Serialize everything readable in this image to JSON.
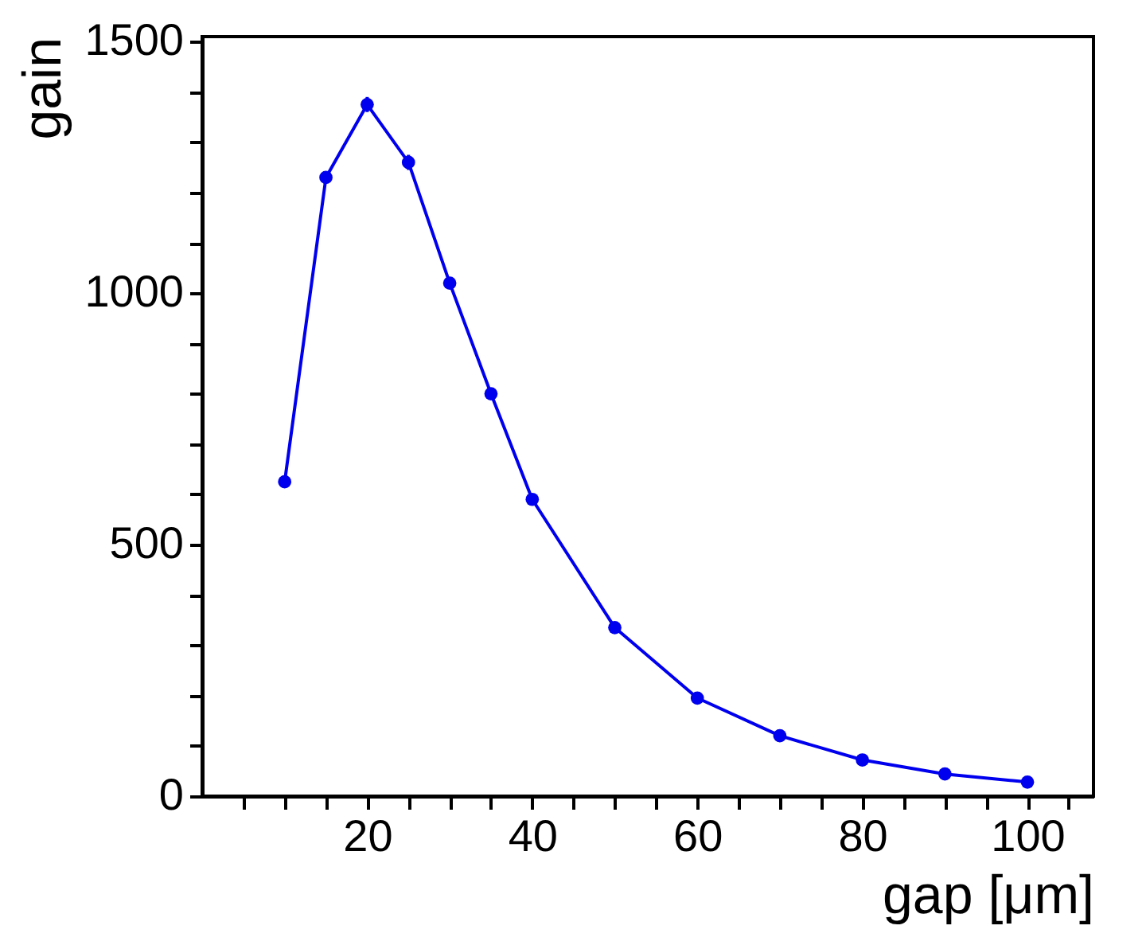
{
  "chart_data": {
    "type": "line",
    "xlabel": "gap [μm]",
    "ylabel": "gain",
    "x": [
      10,
      15,
      20,
      25,
      30,
      35,
      40,
      50,
      60,
      70,
      80,
      90,
      100
    ],
    "series": [
      {
        "color": "#0000ee",
        "values": [
          625,
          1230,
          1375,
          1260,
          1020,
          800,
          590,
          335,
          195,
          120,
          72,
          44,
          28
        ],
        "errors": [
          null,
          null,
          15,
          15,
          null,
          null,
          null,
          null,
          null,
          null,
          null,
          null,
          null
        ]
      }
    ],
    "xlim": [
      0,
      108
    ],
    "ylim": [
      0,
      1510
    ],
    "xticks": [
      {
        "value": 5,
        "label": null
      },
      {
        "value": 10,
        "label": null
      },
      {
        "value": 15,
        "label": null
      },
      20,
      {
        "value": 25,
        "label": null
      },
      {
        "value": 30,
        "label": null
      },
      {
        "value": 35,
        "label": null
      },
      40,
      {
        "value": 45,
        "label": null
      },
      {
        "value": 50,
        "label": null
      },
      {
        "value": 55,
        "label": null
      },
      60,
      {
        "value": 65,
        "label": null
      },
      {
        "value": 70,
        "label": null
      },
      {
        "value": 75,
        "label": null
      },
      80,
      {
        "value": 85,
        "label": null
      },
      {
        "value": 90,
        "label": null
      },
      {
        "value": 95,
        "label": null
      },
      100,
      {
        "value": 105,
        "label": null
      }
    ],
    "yticks": [
      0,
      {
        "value": 100,
        "label": null
      },
      {
        "value": 200,
        "label": null
      },
      {
        "value": 300,
        "label": null
      },
      {
        "value": 400,
        "label": null
      },
      500,
      {
        "value": 600,
        "label": null
      },
      {
        "value": 700,
        "label": null
      },
      {
        "value": 800,
        "label": null
      },
      {
        "value": 900,
        "label": null
      },
      1000,
      {
        "value": 1100,
        "label": null
      },
      {
        "value": 1200,
        "label": null
      },
      {
        "value": 1300,
        "label": null
      },
      {
        "value": 1400,
        "label": null
      },
      1500
    ],
    "marker": "circle",
    "line_style": "solid",
    "grid": false
  }
}
